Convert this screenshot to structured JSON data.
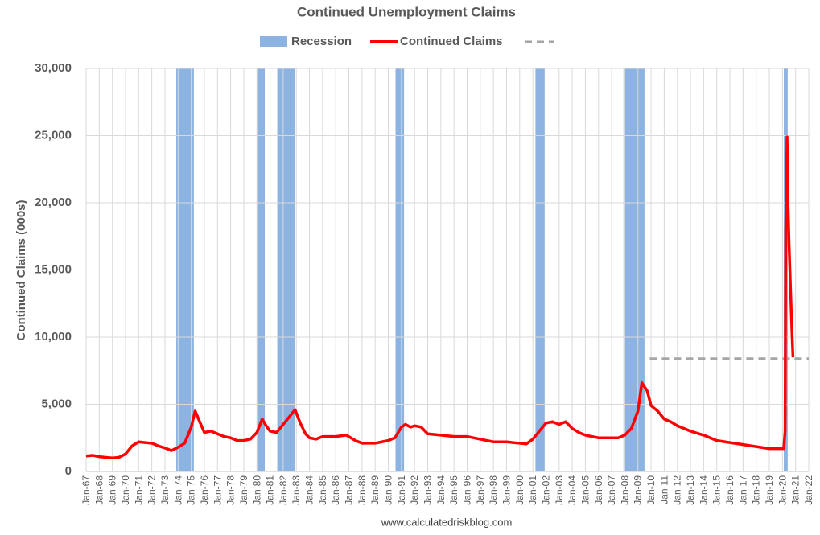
{
  "chart_data": {
    "type": "line",
    "title": "Continued Unemployment Claims",
    "y_label": "Continued Claims (000s)",
    "source": "www.calculatedriskblog.com",
    "xlim": [
      1967,
      2022
    ],
    "ylim": [
      0,
      30000
    ],
    "yticks": [
      0,
      {
        "value": 5000,
        "label": "5,000"
      },
      {
        "value": 10000,
        "label": "10,000"
      },
      {
        "value": 15000,
        "label": "15,000"
      },
      {
        "value": 20000,
        "label": "20,000"
      },
      {
        "value": 25000,
        "label": "25,000"
      },
      {
        "value": 30000,
        "label": "30,000"
      }
    ],
    "xticks": [
      {
        "value": 1967,
        "label": "Jan-67"
      },
      {
        "value": 1968,
        "label": "Jan-68"
      },
      {
        "value": 1969,
        "label": "Jan-69"
      },
      {
        "value": 1970,
        "label": "Jan-70"
      },
      {
        "value": 1971,
        "label": "Jan-71"
      },
      {
        "value": 1972,
        "label": "Jan-72"
      },
      {
        "value": 1973,
        "label": "Jan-73"
      },
      {
        "value": 1974,
        "label": "Jan-74"
      },
      {
        "value": 1975,
        "label": "Jan-75"
      },
      {
        "value": 1976,
        "label": "Jan-76"
      },
      {
        "value": 1977,
        "label": "Jan-77"
      },
      {
        "value": 1978,
        "label": "Jan-78"
      },
      {
        "value": 1979,
        "label": "Jan-79"
      },
      {
        "value": 1980,
        "label": "Jan-80"
      },
      {
        "value": 1981,
        "label": "Jan-81"
      },
      {
        "value": 1982,
        "label": "Jan-82"
      },
      {
        "value": 1983,
        "label": "Jan-83"
      },
      {
        "value": 1984,
        "label": "Jan-84"
      },
      {
        "value": 1985,
        "label": "Jan-85"
      },
      {
        "value": 1986,
        "label": "Jan-86"
      },
      {
        "value": 1987,
        "label": "Jan-87"
      },
      {
        "value": 1988,
        "label": "Jan-88"
      },
      {
        "value": 1989,
        "label": "Jan-89"
      },
      {
        "value": 1990,
        "label": "Jan-90"
      },
      {
        "value": 1991,
        "label": "Jan-91"
      },
      {
        "value": 1992,
        "label": "Jan-92"
      },
      {
        "value": 1993,
        "label": "Jan-93"
      },
      {
        "value": 1994,
        "label": "Jan-94"
      },
      {
        "value": 1995,
        "label": "Jan-95"
      },
      {
        "value": 1996,
        "label": "Jan-96"
      },
      {
        "value": 1997,
        "label": "Jan-97"
      },
      {
        "value": 1998,
        "label": "Jan-98"
      },
      {
        "value": 1999,
        "label": "Jan-99"
      },
      {
        "value": 2000,
        "label": "Jan-00"
      },
      {
        "value": 2001,
        "label": "Jan-01"
      },
      {
        "value": 2002,
        "label": "Jan-02"
      },
      {
        "value": 2003,
        "label": "Jan-03"
      },
      {
        "value": 2004,
        "label": "Jan-04"
      },
      {
        "value": 2005,
        "label": "Jan-05"
      },
      {
        "value": 2006,
        "label": "Jan-06"
      },
      {
        "value": 2007,
        "label": "Jan-07"
      },
      {
        "value": 2008,
        "label": "Jan-08"
      },
      {
        "value": 2009,
        "label": "Jan-09"
      },
      {
        "value": 2010,
        "label": "Jan-10"
      },
      {
        "value": 2011,
        "label": "Jan-11"
      },
      {
        "value": 2012,
        "label": "Jan-12"
      },
      {
        "value": 2013,
        "label": "Jan-13"
      },
      {
        "value": 2014,
        "label": "Jan-14"
      },
      {
        "value": 2015,
        "label": "Jan-15"
      },
      {
        "value": 2016,
        "label": "Jan-16"
      },
      {
        "value": 2017,
        "label": "Jan-17"
      },
      {
        "value": 2018,
        "label": "Jan-18"
      },
      {
        "value": 2019,
        "label": "Jan-19"
      },
      {
        "value": 2020,
        "label": "Jan-20"
      },
      {
        "value": 2021,
        "label": "Jan-21"
      },
      {
        "value": 2022,
        "label": "Jan-22"
      }
    ],
    "grid": true,
    "recessions": {
      "name": "Recession",
      "color": "#8db3e2",
      "ranges": [
        [
          1973.86,
          1975.2
        ],
        [
          1980.0,
          1980.6
        ],
        [
          1981.55,
          1982.9
        ],
        [
          1990.55,
          1991.2
        ],
        [
          2001.2,
          2001.9
        ],
        [
          2007.9,
          2009.5
        ],
        [
          2020.1,
          2020.4
        ]
      ]
    },
    "reference_line": {
      "value": 8400,
      "x": [
        2009.9,
        2022
      ],
      "color": "#a6a6a6"
    },
    "series": [
      {
        "name": "Continued Claims",
        "color": "#ff0000",
        "x": [
          1967.0,
          1967.5,
          1968,
          1968.5,
          1969,
          1969.5,
          1970,
          1970.5,
          1971,
          1971.5,
          1972,
          1972.5,
          1973,
          1973.5,
          1974,
          1974.5,
          1975,
          1975.3,
          1975.6,
          1976,
          1976.5,
          1977,
          1977.5,
          1978,
          1978.5,
          1979,
          1979.5,
          1980,
          1980.4,
          1980.7,
          1981,
          1981.5,
          1982,
          1982.5,
          1982.9,
          1983.3,
          1983.7,
          1984,
          1984.5,
          1985,
          1986,
          1986.8,
          1987.5,
          1988,
          1989,
          1989.5,
          1990,
          1990.5,
          1991,
          1991.3,
          1991.7,
          1992,
          1992.5,
          1993,
          1994,
          1995,
          1996,
          1997,
          1998,
          1999,
          2000,
          2000.5,
          2001,
          2001.5,
          2002,
          2002.5,
          2003,
          2003.5,
          2004,
          2004.5,
          2005,
          2006,
          2007,
          2007.5,
          2008,
          2008.5,
          2009,
          2009.3,
          2009.7,
          2010,
          2010.5,
          2011,
          2011.5,
          2012,
          2013,
          2014,
          2015,
          2016,
          2017,
          2018,
          2019,
          2020.1,
          2020.2,
          2020.25,
          2020.35,
          2020.42,
          2020.5,
          2020.6,
          2020.7,
          2020.8
        ],
        "values": [
          1150,
          1200,
          1100,
          1050,
          1000,
          1050,
          1300,
          1900,
          2200,
          2150,
          2100,
          1900,
          1750,
          1550,
          1800,
          2100,
          3300,
          4500,
          3800,
          2900,
          3000,
          2800,
          2600,
          2500,
          2300,
          2300,
          2400,
          2900,
          3900,
          3400,
          3000,
          2900,
          3500,
          4100,
          4600,
          3600,
          2800,
          2500,
          2400,
          2600,
          2600,
          2700,
          2300,
          2100,
          2100,
          2200,
          2300,
          2500,
          3300,
          3500,
          3300,
          3400,
          3300,
          2800,
          2700,
          2600,
          2600,
          2400,
          2200,
          2200,
          2100,
          2050,
          2400,
          3000,
          3600,
          3700,
          3500,
          3700,
          3200,
          2900,
          2700,
          2500,
          2500,
          2500,
          2700,
          3200,
          4500,
          6600,
          6000,
          4900,
          4500,
          3900,
          3700,
          3400,
          3000,
          2700,
          2300,
          2150,
          2000,
          1850,
          1700,
          1700,
          3000,
          18000,
          24900,
          20000,
          17000,
          14000,
          11000,
          8500
        ]
      }
    ]
  }
}
